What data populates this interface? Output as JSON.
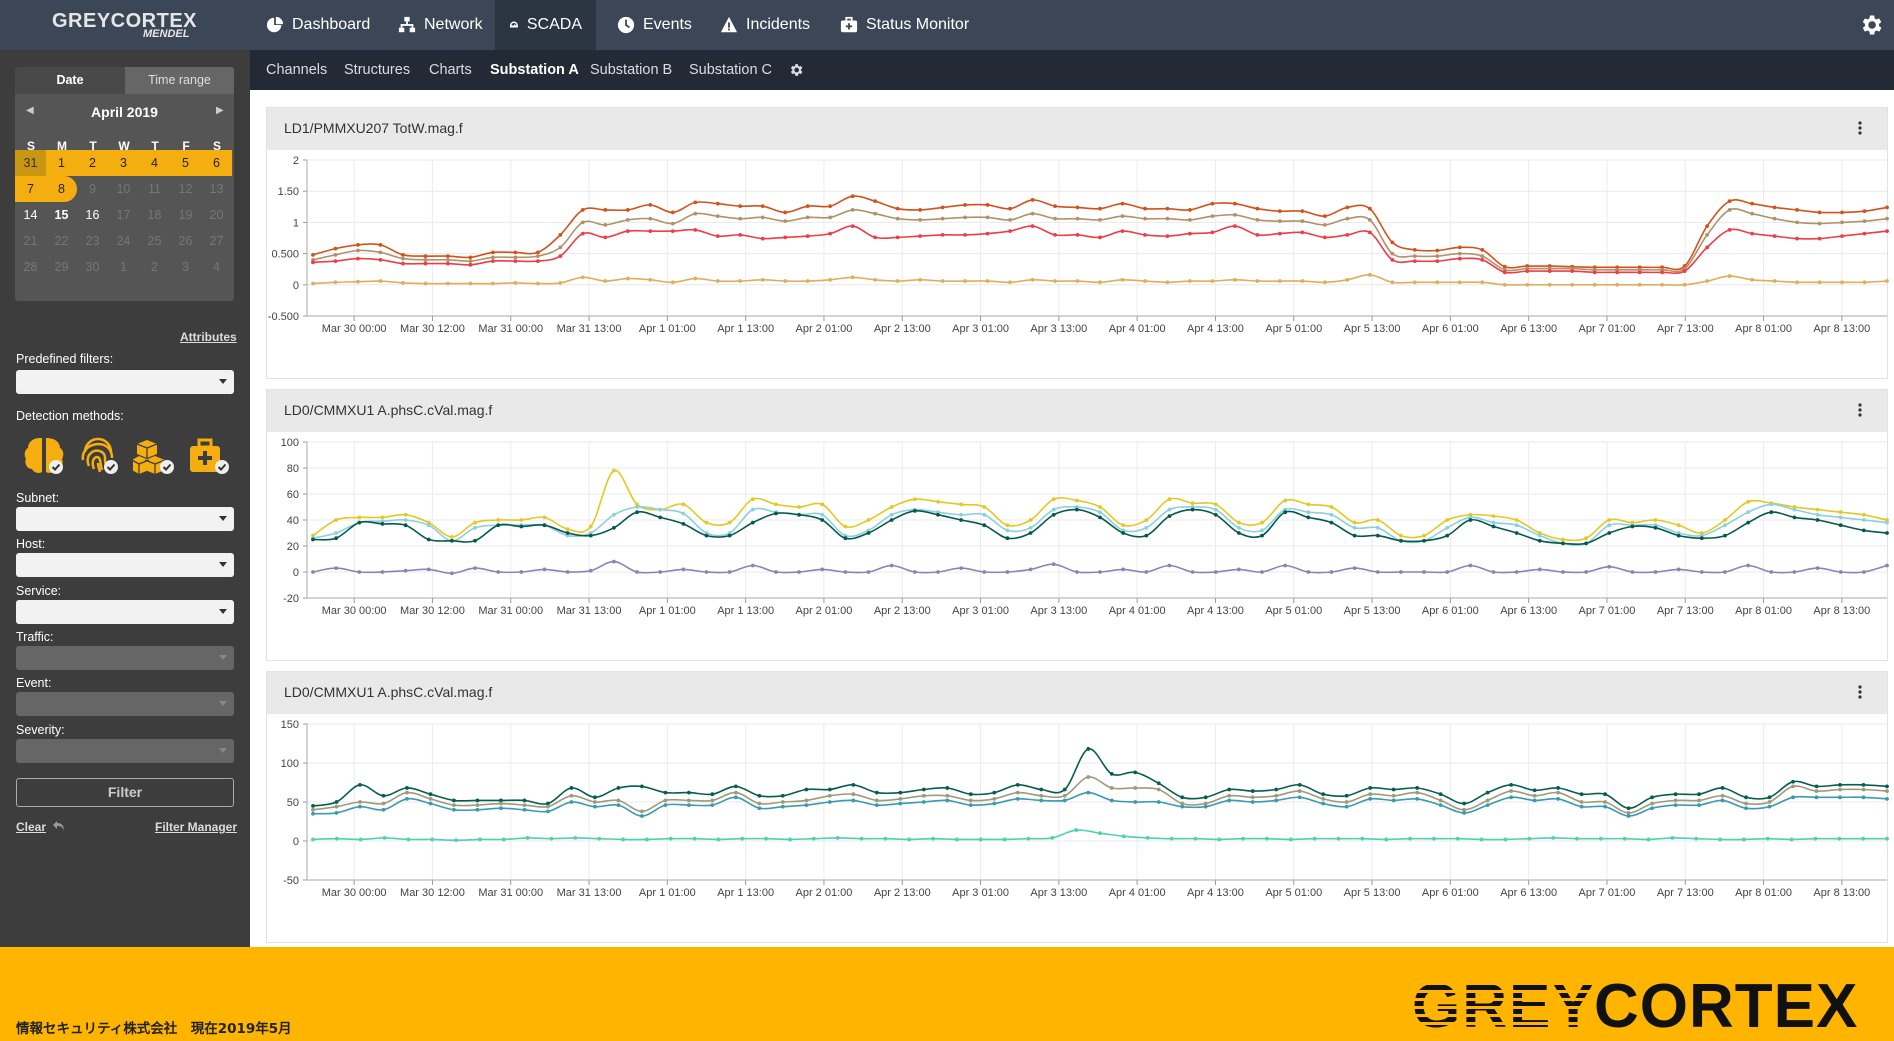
{
  "app": {
    "logo_line1": "GREYCORTEX",
    "logo_line2": "MENDEL"
  },
  "nav": {
    "items": [
      {
        "label": "Dashboard",
        "icon": "pie-chart-icon"
      },
      {
        "label": "Network",
        "icon": "network-icon"
      },
      {
        "label": "SCADA",
        "icon": "gauge-icon",
        "active": true
      },
      {
        "label": "Events",
        "icon": "clock-icon"
      },
      {
        "label": "Incidents",
        "icon": "warning-icon"
      },
      {
        "label": "Status Monitor",
        "icon": "medkit-icon"
      }
    ],
    "settings_icon": "gear-icon"
  },
  "subnav": {
    "items": [
      "Channels",
      "Structures",
      "Charts",
      "Substation A",
      "Substation B",
      "Substation C"
    ],
    "active": "Substation A"
  },
  "sidebar": {
    "tabs": {
      "date": "Date",
      "range": "Time range"
    },
    "calendar": {
      "month": "April 2019",
      "weekdays": [
        "S",
        "M",
        "T",
        "W",
        "T",
        "F",
        "S"
      ],
      "weeks": [
        [
          "31",
          "1",
          "2",
          "3",
          "4",
          "5",
          "6"
        ],
        [
          "7",
          "8",
          "9",
          "10",
          "11",
          "12",
          "13"
        ],
        [
          "14",
          "15",
          "16",
          "17",
          "18",
          "19",
          "20"
        ],
        [
          "21",
          "22",
          "23",
          "24",
          "25",
          "26",
          "27"
        ],
        [
          "28",
          "29",
          "30",
          "1",
          "2",
          "3",
          "4"
        ]
      ]
    },
    "attributes_link": "Attributes",
    "predefined_filters_label": "Predefined filters:",
    "detection_methods_label": "Detection methods:",
    "subnet_label": "Subnet:",
    "host_label": "Host:",
    "service_label": "Service:",
    "traffic_label": "Traffic:",
    "event_label": "Event:",
    "severity_label": "Severity:",
    "filter_button": "Filter",
    "clear_link": "Clear",
    "filter_manager_link": "Filter Manager"
  },
  "colors": {
    "accent": "#f5ae10",
    "nav_bg": "#3b4656",
    "subnav_bg": "#232a35",
    "sidebar_bg": "#3d3d3d",
    "footer_bg": "#ffb400"
  },
  "footer": {
    "text": "情報セキュリティ株式会社　現在2019年5月",
    "logo": "GREYCORTEX"
  },
  "chart_data": [
    {
      "type": "line",
      "title": "LD1/PMMXU207 TotW.mag.f",
      "ylim": [
        -0.5,
        2
      ],
      "yticks": [
        "-0.500",
        "0",
        "0.500",
        "1",
        "1.50",
        "2"
      ],
      "xticks": [
        "Mar 30 00:00",
        "Mar 30 12:00",
        "Mar 31 00:00",
        "Mar 31 13:00",
        "Apr 1 01:00",
        "Apr 1 13:00",
        "Apr 2 01:00",
        "Apr 2 13:00",
        "Apr 3 01:00",
        "Apr 3 13:00",
        "Apr 4 01:00",
        "Apr 4 13:00",
        "Apr 5 01:00",
        "Apr 5 13:00",
        "Apr 6 01:00",
        "Apr 6 13:00",
        "Apr 7 01:00",
        "Apr 7 13:00",
        "Apr 8 01:00",
        "Apr 8 13:00"
      ],
      "grid": true,
      "series": [
        {
          "color": "#d2521c",
          "values": [
            0.48,
            0.58,
            0.64,
            0.64,
            0.48,
            0.46,
            0.46,
            0.44,
            0.52,
            0.52,
            0.52,
            0.8,
            1.2,
            1.2,
            1.2,
            1.28,
            1.16,
            1.32,
            1.3,
            1.26,
            1.26,
            1.16,
            1.26,
            1.26,
            1.42,
            1.34,
            1.22,
            1.2,
            1.24,
            1.28,
            1.28,
            1.22,
            1.36,
            1.26,
            1.24,
            1.22,
            1.3,
            1.22,
            1.22,
            1.2,
            1.3,
            1.3,
            1.22,
            1.18,
            1.18,
            1.1,
            1.24,
            1.22,
            0.68,
            0.56,
            0.55,
            0.6,
            0.56,
            0.29,
            0.3,
            0.3,
            0.29,
            0.28,
            0.28,
            0.28,
            0.28,
            0.3,
            0.94,
            1.34,
            1.3,
            1.24,
            1.2,
            1.16,
            1.16,
            1.18,
            1.24
          ]
        },
        {
          "color": "#b0926a",
          "values": [
            0.4,
            0.48,
            0.55,
            0.52,
            0.42,
            0.4,
            0.4,
            0.38,
            0.44,
            0.44,
            0.46,
            0.6,
            1.0,
            0.96,
            1.04,
            1.06,
            0.98,
            1.14,
            1.1,
            1.06,
            1.08,
            1.02,
            1.08,
            1.08,
            1.2,
            1.14,
            1.06,
            1.04,
            1.06,
            1.08,
            1.08,
            1.04,
            1.14,
            1.06,
            1.06,
            1.04,
            1.1,
            1.06,
            1.06,
            1.04,
            1.1,
            1.12,
            1.04,
            1.02,
            1.02,
            0.96,
            1.06,
            1.04,
            0.5,
            0.46,
            0.46,
            0.5,
            0.46,
            0.24,
            0.26,
            0.26,
            0.26,
            0.24,
            0.24,
            0.24,
            0.24,
            0.26,
            0.8,
            1.2,
            1.14,
            1.06,
            1.0,
            0.98,
            1.0,
            1.02,
            1.06
          ]
        },
        {
          "color": "#ef3d47",
          "values": [
            0.36,
            0.38,
            0.42,
            0.4,
            0.34,
            0.34,
            0.34,
            0.32,
            0.38,
            0.38,
            0.38,
            0.46,
            0.82,
            0.76,
            0.86,
            0.86,
            0.86,
            0.88,
            0.78,
            0.8,
            0.74,
            0.76,
            0.78,
            0.82,
            0.94,
            0.76,
            0.76,
            0.78,
            0.8,
            0.8,
            0.82,
            0.86,
            0.94,
            0.8,
            0.8,
            0.76,
            0.86,
            0.8,
            0.78,
            0.82,
            0.84,
            0.94,
            0.8,
            0.82,
            0.84,
            0.76,
            0.8,
            0.84,
            0.4,
            0.38,
            0.38,
            0.42,
            0.4,
            0.2,
            0.22,
            0.22,
            0.22,
            0.2,
            0.2,
            0.2,
            0.2,
            0.22,
            0.6,
            0.88,
            0.82,
            0.78,
            0.74,
            0.74,
            0.78,
            0.82,
            0.86
          ]
        },
        {
          "color": "#dfae5d",
          "values": [
            0.02,
            0.04,
            0.05,
            0.06,
            0.03,
            0.02,
            0.02,
            0.02,
            0.02,
            0.03,
            0.02,
            0.03,
            0.12,
            0.06,
            0.1,
            0.08,
            0.04,
            0.1,
            0.06,
            0.06,
            0.08,
            0.06,
            0.06,
            0.08,
            0.12,
            0.08,
            0.06,
            0.08,
            0.06,
            0.06,
            0.06,
            0.04,
            0.08,
            0.06,
            0.06,
            0.04,
            0.08,
            0.06,
            0.04,
            0.06,
            0.06,
            0.08,
            0.06,
            0.06,
            0.06,
            0.04,
            0.08,
            0.16,
            0.04,
            0.04,
            0.04,
            0.04,
            0.04,
            0.0,
            0.0,
            0.0,
            0.0,
            0.0,
            0.0,
            0.0,
            0.0,
            0.0,
            0.06,
            0.14,
            0.08,
            0.06,
            0.04,
            0.04,
            0.04,
            0.04,
            0.06
          ]
        }
      ]
    },
    {
      "type": "line",
      "title": "LD0/CMMXU1 A.phsC.cVal.mag.f",
      "ylim": [
        -20,
        100
      ],
      "yticks": [
        "-20",
        "0",
        "20",
        "40",
        "60",
        "80",
        "100"
      ],
      "xticks": [
        "Mar 30 00:00",
        "Mar 30 12:00",
        "Mar 31 00:00",
        "Mar 31 13:00",
        "Apr 1 01:00",
        "Apr 1 13:00",
        "Apr 2 01:00",
        "Apr 2 13:00",
        "Apr 3 01:00",
        "Apr 3 13:00",
        "Apr 4 01:00",
        "Apr 4 13:00",
        "Apr 5 01:00",
        "Apr 5 13:00",
        "Apr 6 01:00",
        "Apr 6 13:00",
        "Apr 7 01:00",
        "Apr 7 13:00",
        "Apr 8 01:00",
        "Apr 8 13:00"
      ],
      "grid": true,
      "series": [
        {
          "color": "#e4c823",
          "values": [
            28,
            40,
            42,
            42,
            44,
            38,
            27,
            38,
            40,
            40,
            42,
            33,
            35,
            78,
            52,
            48,
            52,
            38,
            38,
            56,
            52,
            50,
            52,
            35,
            40,
            50,
            56,
            54,
            52,
            50,
            36,
            40,
            56,
            55,
            50,
            36,
            40,
            56,
            53,
            52,
            38,
            38,
            55,
            52,
            50,
            38,
            40,
            28,
            28,
            40,
            44,
            43,
            40,
            30,
            25,
            26,
            40,
            38,
            40,
            36,
            30,
            40,
            54,
            53,
            50,
            48,
            46,
            44,
            40
          ]
        },
        {
          "color": "#8ccfe0",
          "values": [
            26,
            30,
            38,
            39,
            40,
            36,
            24,
            34,
            36,
            36,
            36,
            28,
            30,
            44,
            50,
            48,
            45,
            30,
            30,
            48,
            46,
            44,
            44,
            28,
            32,
            44,
            48,
            46,
            44,
            44,
            32,
            34,
            48,
            50,
            46,
            32,
            34,
            48,
            50,
            48,
            34,
            32,
            48,
            46,
            44,
            34,
            34,
            24,
            24,
            34,
            42,
            38,
            36,
            28,
            22,
            22,
            36,
            36,
            36,
            30,
            28,
            36,
            46,
            52,
            48,
            44,
            42,
            40,
            38
          ]
        },
        {
          "color": "#045a4d",
          "values": [
            25,
            26,
            38,
            37,
            36,
            25,
            24,
            24,
            36,
            35,
            36,
            30,
            28,
            34,
            46,
            42,
            37,
            28,
            28,
            38,
            45,
            44,
            40,
            26,
            30,
            40,
            47,
            44,
            40,
            36,
            26,
            30,
            44,
            48,
            42,
            30,
            28,
            43,
            48,
            44,
            30,
            28,
            46,
            42,
            38,
            28,
            28,
            24,
            24,
            28,
            40,
            35,
            30,
            24,
            22,
            22,
            30,
            35,
            34,
            28,
            26,
            28,
            38,
            46,
            42,
            40,
            36,
            32,
            30
          ]
        },
        {
          "color": "#8a84b6",
          "values": [
            0,
            3,
            0,
            0,
            1,
            2,
            -1,
            3,
            0,
            0,
            2,
            0,
            1,
            8,
            0,
            0,
            2,
            0,
            0,
            5,
            0,
            0,
            2,
            0,
            0,
            5,
            0,
            0,
            3,
            0,
            0,
            2,
            6,
            0,
            0,
            2,
            0,
            5,
            0,
            0,
            2,
            0,
            5,
            0,
            0,
            3,
            0,
            0,
            0,
            0,
            5,
            0,
            0,
            2,
            0,
            0,
            4,
            0,
            0,
            2,
            0,
            0,
            5,
            0,
            0,
            3,
            0,
            0,
            5
          ]
        }
      ]
    },
    {
      "type": "line",
      "title": "LD0/CMMXU1 A.phsC.cVal.mag.f",
      "ylim": [
        -50,
        150
      ],
      "yticks": [
        "-50",
        "0",
        "50",
        "100",
        "150"
      ],
      "xticks": [
        "Mar 30 00:00",
        "Mar 30 12:00",
        "Mar 31 00:00",
        "Mar 31 13:00",
        "Apr 1 01:00",
        "Apr 1 13:00",
        "Apr 2 01:00",
        "Apr 2 13:00",
        "Apr 3 01:00",
        "Apr 3 13:00",
        "Apr 4 01:00",
        "Apr 4 13:00",
        "Apr 5 01:00",
        "Apr 5 13:00",
        "Apr 6 01:00",
        "Apr 6 13:00",
        "Apr 7 01:00",
        "Apr 7 13:00",
        "Apr 8 01:00",
        "Apr 8 13:00"
      ],
      "grid": true,
      "series": [
        {
          "color": "#065e4f",
          "values": [
            45,
            50,
            72,
            58,
            68,
            60,
            52,
            52,
            52,
            52,
            48,
            68,
            56,
            68,
            70,
            62,
            62,
            60,
            70,
            58,
            58,
            66,
            66,
            72,
            62,
            62,
            66,
            68,
            60,
            62,
            72,
            66,
            66,
            118,
            86,
            88,
            74,
            56,
            56,
            66,
            64,
            66,
            72,
            60,
            58,
            68,
            66,
            68,
            60,
            48,
            62,
            72,
            65,
            68,
            60,
            60,
            42,
            56,
            60,
            60,
            68,
            56,
            56,
            76,
            70,
            72,
            72,
            70
          ]
        },
        {
          "color": "#9e9a7a",
          "values": [
            40,
            44,
            50,
            48,
            62,
            54,
            46,
            46,
            48,
            46,
            44,
            58,
            50,
            52,
            38,
            52,
            52,
            52,
            62,
            48,
            50,
            52,
            58,
            60,
            52,
            54,
            58,
            58,
            52,
            54,
            62,
            58,
            58,
            82,
            68,
            68,
            66,
            48,
            48,
            58,
            56,
            58,
            64,
            54,
            50,
            60,
            58,
            62,
            52,
            40,
            52,
            64,
            58,
            62,
            50,
            50,
            36,
            48,
            52,
            52,
            58,
            48,
            50,
            70,
            64,
            66,
            66,
            64
          ]
        },
        {
          "color": "#3a9aaf",
          "values": [
            35,
            36,
            44,
            40,
            54,
            48,
            40,
            40,
            42,
            40,
            38,
            50,
            44,
            46,
            32,
            46,
            46,
            46,
            56,
            42,
            44,
            46,
            50,
            52,
            46,
            48,
            50,
            52,
            46,
            48,
            54,
            52,
            52,
            62,
            52,
            50,
            50,
            44,
            44,
            52,
            50,
            52,
            56,
            48,
            44,
            54,
            52,
            54,
            46,
            36,
            46,
            56,
            52,
            54,
            44,
            44,
            32,
            42,
            46,
            46,
            52,
            42,
            44,
            56,
            56,
            56,
            56,
            54
          ]
        },
        {
          "color": "#4fd1b0",
          "values": [
            2,
            3,
            2,
            4,
            2,
            2,
            1,
            2,
            2,
            4,
            3,
            4,
            3,
            2,
            2,
            3,
            3,
            2,
            3,
            3,
            2,
            3,
            4,
            3,
            3,
            2,
            3,
            2,
            2,
            2,
            3,
            4,
            14,
            10,
            6,
            4,
            3,
            3,
            2,
            3,
            3,
            2,
            3,
            3,
            3,
            2,
            3,
            3,
            3,
            2,
            2,
            3,
            4,
            3,
            3,
            3,
            2,
            4,
            3,
            2,
            2,
            3,
            2,
            3,
            3,
            3,
            3
          ]
        }
      ]
    }
  ]
}
